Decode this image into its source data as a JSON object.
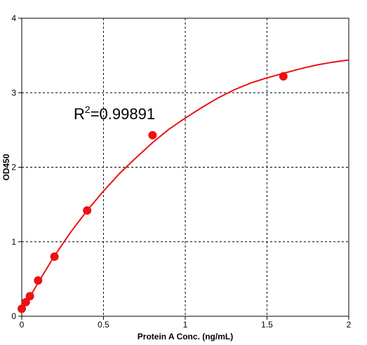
{
  "chart_data": {
    "type": "scatter",
    "xlabel": "Protein A Conc. (ng/mL)",
    "ylabel": "OD450",
    "xlim": [
      0,
      2
    ],
    "ylim": [
      0,
      4
    ],
    "x_ticks": [
      0,
      0.5,
      1,
      1.5,
      2
    ],
    "x_tick_labels": [
      "0",
      "0.5",
      "1",
      "1.5",
      "2"
    ],
    "y_ticks": [
      0,
      1,
      2,
      3,
      4
    ],
    "y_tick_labels": [
      "0",
      "1",
      "2",
      "3",
      "4"
    ],
    "grid": true,
    "annotation": {
      "prefix": "R",
      "superscript": "2",
      "suffix": "=0.99891"
    },
    "series": [
      {
        "points": [
          {
            "x": 0,
            "y": 0.1
          },
          {
            "x": 0.025,
            "y": 0.19
          },
          {
            "x": 0.05,
            "y": 0.27
          },
          {
            "x": 0.1,
            "y": 0.48
          },
          {
            "x": 0.2,
            "y": 0.8
          },
          {
            "x": 0.4,
            "y": 1.42
          },
          {
            "x": 0.8,
            "y": 2.43
          },
          {
            "x": 1.6,
            "y": 3.22
          }
        ],
        "fit_curve": {
          "x": [
            0,
            0.025,
            0.05,
            0.1,
            0.15,
            0.2,
            0.3,
            0.4,
            0.5,
            0.6,
            0.7,
            0.8,
            0.9,
            1.0,
            1.1,
            1.2,
            1.3,
            1.4,
            1.5,
            1.6,
            1.7,
            1.8,
            1.9,
            2.0
          ],
          "y": [
            0.09,
            0.17,
            0.26,
            0.45,
            0.63,
            0.81,
            1.13,
            1.42,
            1.68,
            1.92,
            2.13,
            2.33,
            2.51,
            2.66,
            2.8,
            2.93,
            3.04,
            3.13,
            3.2,
            3.26,
            3.32,
            3.37,
            3.41,
            3.44
          ]
        },
        "color": "#ee1111"
      }
    ]
  }
}
